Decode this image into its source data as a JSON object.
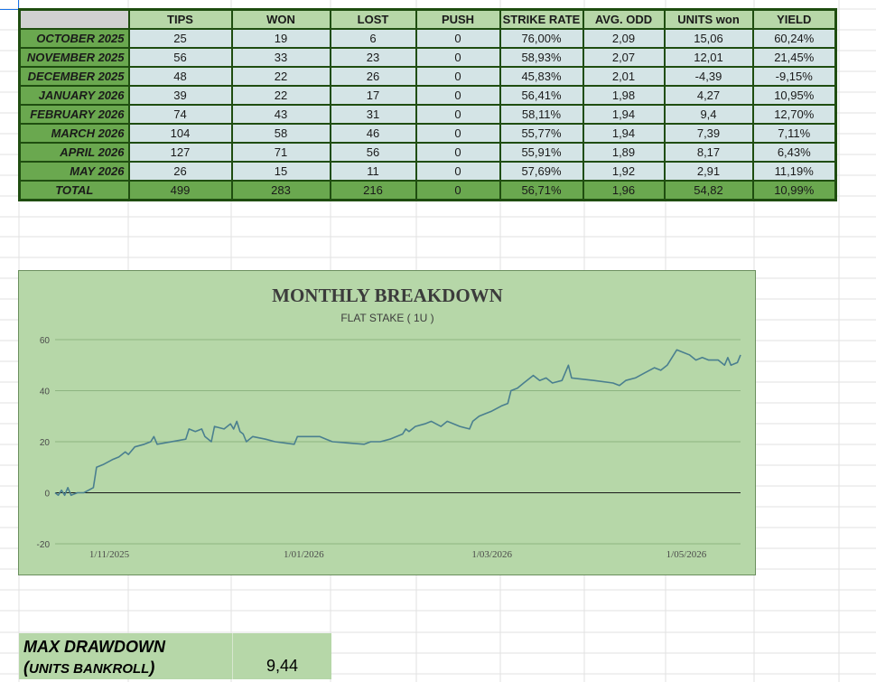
{
  "table": {
    "headers": [
      "TIPS",
      "WON",
      "LOST",
      "PUSH",
      "STRIKE RATE",
      "AVG. ODD",
      "UNITS won",
      "YIELD"
    ],
    "rows": [
      {
        "label": "OCTOBER 2025",
        "values": [
          "25",
          "19",
          "6",
          "0",
          "76,00%",
          "2,09",
          "15,06",
          "60,24%"
        ]
      },
      {
        "label": "NOVEMBER 2025",
        "values": [
          "56",
          "33",
          "23",
          "0",
          "58,93%",
          "2,07",
          "12,01",
          "21,45%"
        ]
      },
      {
        "label": "DECEMBER 2025",
        "values": [
          "48",
          "22",
          "26",
          "0",
          "45,83%",
          "2,01",
          "-4,39",
          "-9,15%"
        ]
      },
      {
        "label": "JANUARY 2026",
        "values": [
          "39",
          "22",
          "17",
          "0",
          "56,41%",
          "1,98",
          "4,27",
          "10,95%"
        ]
      },
      {
        "label": "FEBRUARY 2026",
        "values": [
          "74",
          "43",
          "31",
          "0",
          "58,11%",
          "1,94",
          "9,4",
          "12,70%"
        ]
      },
      {
        "label": "MARCH 2026",
        "values": [
          "104",
          "58",
          "46",
          "0",
          "55,77%",
          "1,94",
          "7,39",
          "7,11%"
        ]
      },
      {
        "label": "APRIL 2026",
        "values": [
          "127",
          "71",
          "56",
          "0",
          "55,91%",
          "1,89",
          "8,17",
          "6,43%"
        ]
      },
      {
        "label": "MAY 2026",
        "values": [
          "26",
          "15",
          "11",
          "0",
          "57,69%",
          "1,92",
          "2,91",
          "11,19%"
        ]
      }
    ],
    "total": {
      "label": "TOTAL",
      "values": [
        "499",
        "283",
        "216",
        "0",
        "56,71%",
        "1,96",
        "54,82",
        "10,99%"
      ]
    }
  },
  "chart_data": {
    "type": "line",
    "title": "MONTHLY BREAKDOWN",
    "subtitle": "FLAT STAKE ( 1U )",
    "xlabel": "",
    "ylabel": "",
    "ylim": [
      -20,
      60
    ],
    "yticks": [
      "60",
      "40",
      "20",
      "0",
      "-20"
    ],
    "xlim": [
      "2025-10-15",
      "2026-05-18"
    ],
    "xticks": [
      {
        "date": "2025-11-01",
        "label": "1/11/2025"
      },
      {
        "date": "2026-01-01",
        "label": "1/01/2026"
      },
      {
        "date": "2026-03-01",
        "label": "1/03/2026"
      },
      {
        "date": "2026-05-01",
        "label": "1/05/2026"
      }
    ],
    "grid": true,
    "line_color": "#4a7f8f",
    "series": [
      {
        "name": "",
        "points": [
          {
            "x": "2025-10-15",
            "y": 0
          },
          {
            "x": "2025-10-16",
            "y": -1
          },
          {
            "x": "2025-10-17",
            "y": 1
          },
          {
            "x": "2025-10-18",
            "y": -1
          },
          {
            "x": "2025-10-19",
            "y": 2
          },
          {
            "x": "2025-10-20",
            "y": -1
          },
          {
            "x": "2025-10-22",
            "y": 0
          },
          {
            "x": "2025-10-24",
            "y": 0
          },
          {
            "x": "2025-10-27",
            "y": 2
          },
          {
            "x": "2025-10-28",
            "y": 10
          },
          {
            "x": "2025-10-30",
            "y": 11
          },
          {
            "x": "2025-11-02",
            "y": 13
          },
          {
            "x": "2025-11-04",
            "y": 14
          },
          {
            "x": "2025-11-06",
            "y": 16
          },
          {
            "x": "2025-11-07",
            "y": 15
          },
          {
            "x": "2025-11-09",
            "y": 18
          },
          {
            "x": "2025-11-12",
            "y": 19
          },
          {
            "x": "2025-11-14",
            "y": 20
          },
          {
            "x": "2025-11-15",
            "y": 22
          },
          {
            "x": "2025-11-16",
            "y": 19
          },
          {
            "x": "2025-11-25",
            "y": 21
          },
          {
            "x": "2025-11-26",
            "y": 25
          },
          {
            "x": "2025-11-28",
            "y": 24
          },
          {
            "x": "2025-11-30",
            "y": 25
          },
          {
            "x": "2025-12-01",
            "y": 22
          },
          {
            "x": "2025-12-03",
            "y": 20
          },
          {
            "x": "2025-12-04",
            "y": 26
          },
          {
            "x": "2025-12-07",
            "y": 25
          },
          {
            "x": "2025-12-09",
            "y": 27
          },
          {
            "x": "2025-12-10",
            "y": 25
          },
          {
            "x": "2025-12-11",
            "y": 28
          },
          {
            "x": "2025-12-12",
            "y": 24
          },
          {
            "x": "2025-12-13",
            "y": 23
          },
          {
            "x": "2025-12-14",
            "y": 20
          },
          {
            "x": "2025-12-16",
            "y": 22
          },
          {
            "x": "2025-12-20",
            "y": 21
          },
          {
            "x": "2025-12-23",
            "y": 20
          },
          {
            "x": "2025-12-29",
            "y": 19
          },
          {
            "x": "2025-12-30",
            "y": 22
          },
          {
            "x": "2026-01-06",
            "y": 22
          },
          {
            "x": "2026-01-08",
            "y": 21
          },
          {
            "x": "2026-01-10",
            "y": 20
          },
          {
            "x": "2026-01-20",
            "y": 19
          },
          {
            "x": "2026-01-22",
            "y": 20
          },
          {
            "x": "2026-01-25",
            "y": 20
          },
          {
            "x": "2026-01-28",
            "y": 21
          },
          {
            "x": "2026-02-01",
            "y": 23
          },
          {
            "x": "2026-02-02",
            "y": 25
          },
          {
            "x": "2026-02-03",
            "y": 24
          },
          {
            "x": "2026-02-05",
            "y": 26
          },
          {
            "x": "2026-02-08",
            "y": 27
          },
          {
            "x": "2026-02-10",
            "y": 28
          },
          {
            "x": "2026-02-13",
            "y": 26
          },
          {
            "x": "2026-02-15",
            "y": 28
          },
          {
            "x": "2026-02-17",
            "y": 27
          },
          {
            "x": "2026-02-19",
            "y": 26
          },
          {
            "x": "2026-02-22",
            "y": 25
          },
          {
            "x": "2026-02-23",
            "y": 28
          },
          {
            "x": "2026-02-25",
            "y": 30
          },
          {
            "x": "2026-02-27",
            "y": 31
          },
          {
            "x": "2026-03-01",
            "y": 32
          },
          {
            "x": "2026-03-04",
            "y": 34
          },
          {
            "x": "2026-03-06",
            "y": 35
          },
          {
            "x": "2026-03-07",
            "y": 40
          },
          {
            "x": "2026-03-09",
            "y": 41
          },
          {
            "x": "2026-03-11",
            "y": 43
          },
          {
            "x": "2026-03-14",
            "y": 46
          },
          {
            "x": "2026-03-16",
            "y": 44
          },
          {
            "x": "2026-03-18",
            "y": 45
          },
          {
            "x": "2026-03-20",
            "y": 43
          },
          {
            "x": "2026-03-23",
            "y": 44
          },
          {
            "x": "2026-03-25",
            "y": 50
          },
          {
            "x": "2026-03-26",
            "y": 45
          },
          {
            "x": "2026-04-02",
            "y": 44
          },
          {
            "x": "2026-04-08",
            "y": 43
          },
          {
            "x": "2026-04-10",
            "y": 42
          },
          {
            "x": "2026-04-12",
            "y": 44
          },
          {
            "x": "2026-04-15",
            "y": 45
          },
          {
            "x": "2026-04-18",
            "y": 47
          },
          {
            "x": "2026-04-21",
            "y": 49
          },
          {
            "x": "2026-04-23",
            "y": 48
          },
          {
            "x": "2026-04-25",
            "y": 50
          },
          {
            "x": "2026-04-27",
            "y": 54
          },
          {
            "x": "2026-04-28",
            "y": 56
          },
          {
            "x": "2026-04-30",
            "y": 55
          },
          {
            "x": "2026-05-02",
            "y": 54
          },
          {
            "x": "2026-05-04",
            "y": 52
          },
          {
            "x": "2026-05-06",
            "y": 53
          },
          {
            "x": "2026-05-08",
            "y": 52
          },
          {
            "x": "2026-05-11",
            "y": 52
          },
          {
            "x": "2026-05-13",
            "y": 50
          },
          {
            "x": "2026-05-14",
            "y": 53
          },
          {
            "x": "2026-05-15",
            "y": 50
          },
          {
            "x": "2026-05-17",
            "y": 51
          },
          {
            "x": "2026-05-18",
            "y": 54
          }
        ]
      }
    ]
  },
  "drawdown": {
    "label_line1": "MAX DRAWDOWN",
    "label_line2_open": "(",
    "label_line2_text": "UNITS BANKROLL",
    "label_line2_close": ")",
    "value": "9,44"
  }
}
